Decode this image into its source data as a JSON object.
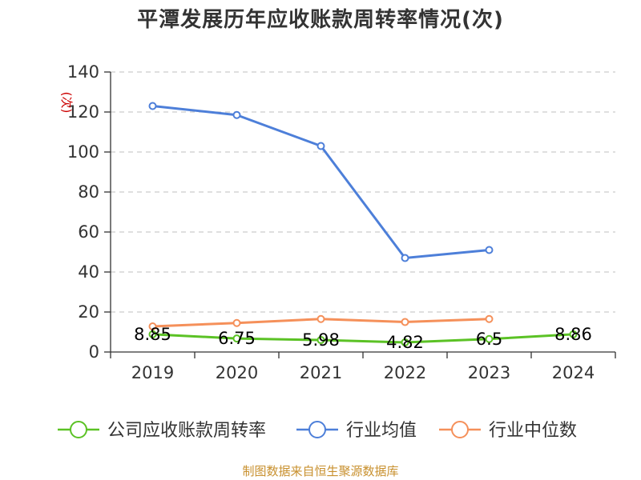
{
  "chart_data": {
    "type": "line",
    "title": "平潭发展历年应收账款周转率情况(次)",
    "ylabel": "(次)",
    "xlabel": "",
    "categories": [
      "2019",
      "2020",
      "2021",
      "2022",
      "2023",
      "2024"
    ],
    "ylim": [
      0,
      140
    ],
    "yticks": [
      0,
      20,
      40,
      60,
      80,
      100,
      120,
      140
    ],
    "grid": "horizontal dashed",
    "legend_position": "bottom",
    "series": [
      {
        "name": "公司应收账款周转率",
        "color": "#5bc225",
        "values": [
          8.85,
          6.75,
          5.98,
          4.82,
          6.5,
          8.86
        ],
        "labels": [
          "8.85",
          "6.75",
          "5.98",
          "4.82",
          "6.5",
          "8.86"
        ]
      },
      {
        "name": "行业均值",
        "color": "#4d7fd9",
        "values": [
          123,
          118.5,
          103,
          47,
          51,
          null
        ]
      },
      {
        "name": "行业中位数",
        "color": "#f5905a",
        "values": [
          12.8,
          14.5,
          16.5,
          15,
          16.5,
          null
        ]
      }
    ]
  },
  "source_note": "制图数据来自恒生聚源数据库"
}
